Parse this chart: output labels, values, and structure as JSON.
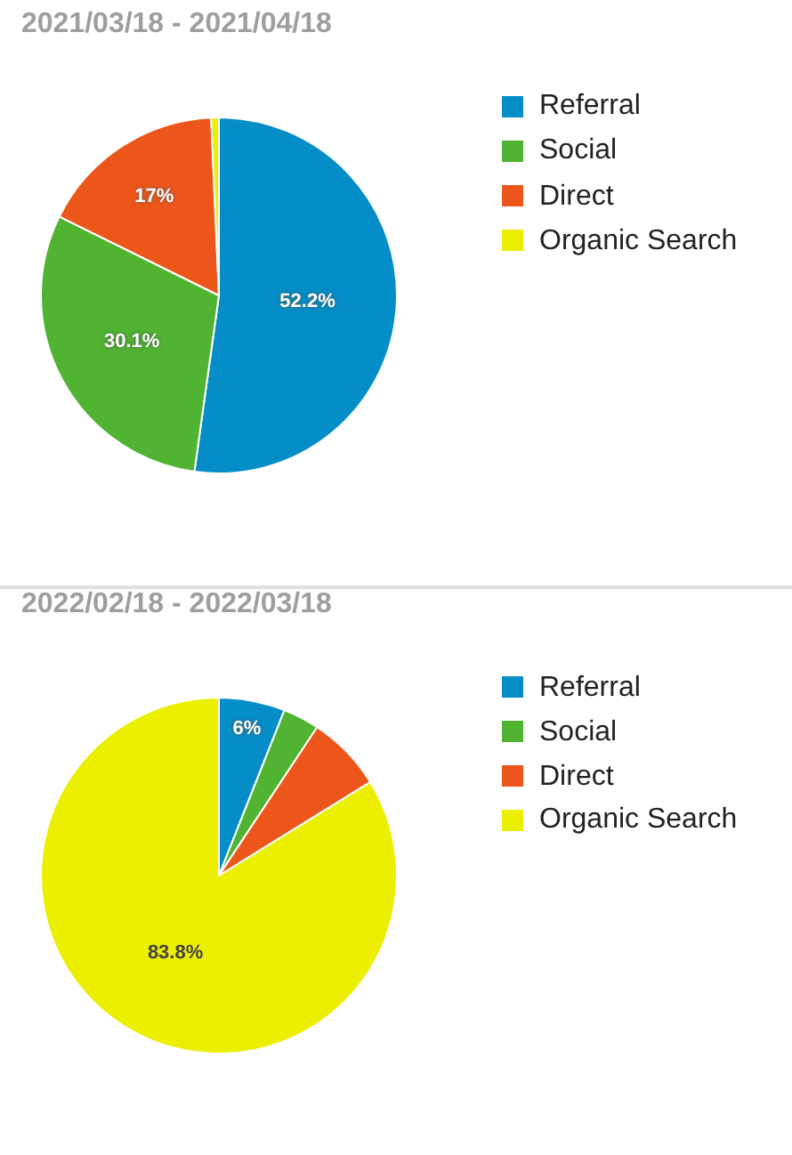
{
  "chart_data": [
    {
      "type": "pie",
      "title": "2021/03/18 - 2021/04/18",
      "categories": [
        "Referral",
        "Social",
        "Direct",
        "Organic Search"
      ],
      "values": [
        52.2,
        30.1,
        17,
        0.7
      ],
      "colors": [
        "#058dc7",
        "#50b432",
        "#ed561b",
        "#edef00"
      ],
      "value_labels": [
        "52.2%",
        "30.1%",
        "17%",
        null
      ],
      "legend": "top right"
    },
    {
      "type": "pie",
      "title": "2022/02/18 - 2022/03/18",
      "categories": [
        "Referral",
        "Social",
        "Direct",
        "Organic Search"
      ],
      "values": [
        6,
        3.3,
        6.9,
        83.8
      ],
      "colors": [
        "#058dc7",
        "#50b432",
        "#ed561b",
        "#edef00"
      ],
      "value_labels": [
        "6%",
        null,
        null,
        "83.8%"
      ],
      "legend": "top right"
    }
  ]
}
